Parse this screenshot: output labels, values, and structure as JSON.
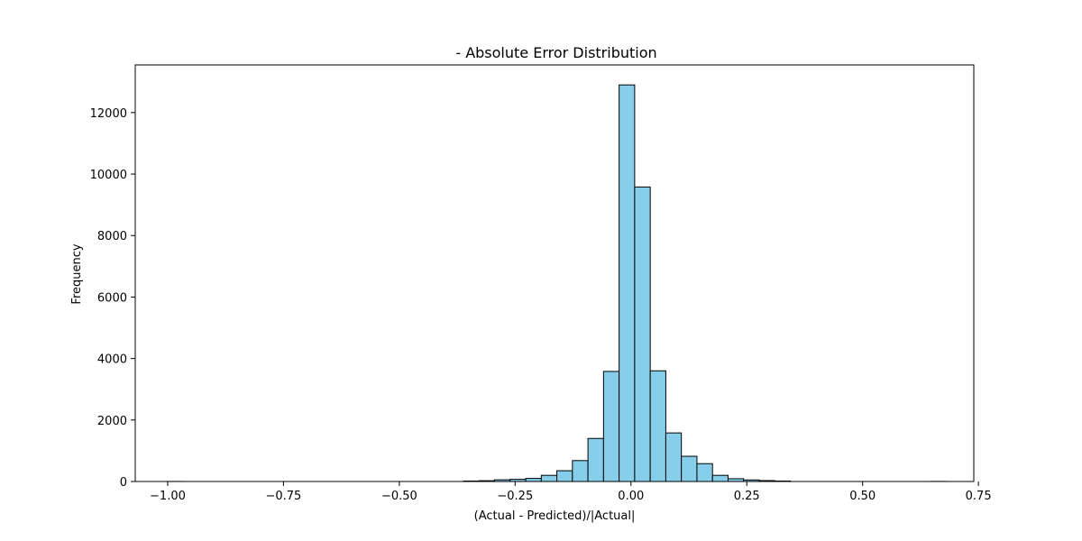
{
  "chart_data": {
    "type": "bar",
    "title": "- Absolute Error Distribution",
    "xlabel": "(Actual - Predicted)/|Actual|",
    "ylabel": "Frequency",
    "xlim": [
      -1.07,
      0.74
    ],
    "ylim": [
      0,
      13550
    ],
    "xticks": [
      -1.0,
      -0.75,
      -0.5,
      -0.25,
      0.0,
      0.25,
      0.5,
      0.75
    ],
    "xtick_labels": [
      "−1.00",
      "−0.75",
      "−0.50",
      "−0.25",
      "0.00",
      "0.25",
      "0.50",
      "0.75"
    ],
    "yticks": [
      0,
      2000,
      4000,
      6000,
      8000,
      10000,
      12000
    ],
    "ytick_labels": [
      "0",
      "2000",
      "4000",
      "6000",
      "8000",
      "10000",
      "12000"
    ],
    "bin_edges": [
      -1.0,
      -0.9664,
      -0.9328,
      -0.8992,
      -0.8656,
      -0.832,
      -0.7984,
      -0.7648,
      -0.7312,
      -0.6976,
      -0.664,
      -0.6304,
      -0.5968,
      -0.5632,
      -0.5296,
      -0.496,
      -0.4624,
      -0.4288,
      -0.3952,
      -0.3616,
      -0.328,
      -0.2944,
      -0.2608,
      -0.2272,
      -0.1936,
      -0.16,
      -0.1264,
      -0.0928,
      -0.0592,
      -0.0256,
      0.008,
      0.0416,
      0.0752,
      0.1088,
      0.1424,
      0.176,
      0.2096,
      0.2432,
      0.2768,
      0.3104,
      0.344,
      0.3776,
      0.4112,
      0.4448,
      0.4784,
      0.512,
      0.5456,
      0.5792,
      0.6128,
      0.6464,
      0.68
    ],
    "counts": [
      2,
      0,
      0,
      0,
      0,
      0,
      0,
      0,
      0,
      0,
      0,
      0,
      0,
      0,
      0,
      0,
      0,
      0,
      0,
      15,
      25,
      55,
      70,
      100,
      200,
      350,
      680,
      1400,
      3580,
      12900,
      9580,
      3600,
      1580,
      820,
      580,
      200,
      90,
      50,
      30,
      15,
      0,
      0,
      0,
      0,
      0,
      0,
      0,
      0,
      0,
      3
    ],
    "bar_color": "#87ceeb",
    "edge_color": "#000000",
    "grid": false
  }
}
